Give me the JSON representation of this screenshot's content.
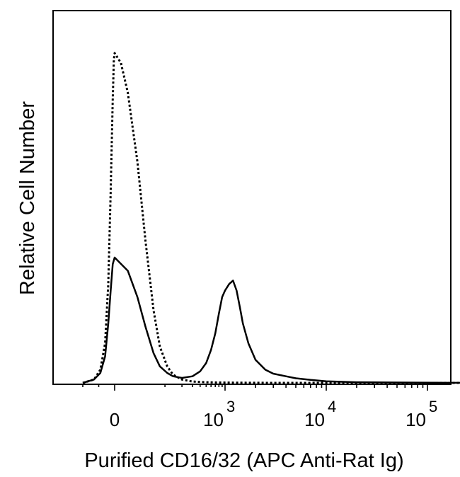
{
  "chart_data": {
    "type": "line",
    "title": "",
    "xlabel": "Purified CD16/32 (APC Anti-Rat Ig)",
    "ylabel": "Relative Cell Number",
    "x_scale": "biexponential",
    "x_tick_labels": [
      {
        "base": "0",
        "exp": "",
        "value": 0
      },
      {
        "base": "10",
        "exp": "3",
        "value": 1000
      },
      {
        "base": "10",
        "exp": "4",
        "value": 10000
      },
      {
        "base": "10",
        "exp": "5",
        "value": 100000
      }
    ],
    "xlim": [
      -200,
      262144
    ],
    "ylim": [
      0,
      100
    ],
    "grid": false,
    "legend": "none",
    "colors": {
      "line": "#000000",
      "axis": "#000000"
    },
    "series": [
      {
        "style": "dotted",
        "x": [
          -200,
          -130,
          -90,
          -60,
          -40,
          -25,
          -12,
          -5,
          0,
          5,
          12,
          25,
          40,
          60,
          80,
          110,
          140,
          200,
          300,
          500,
          800,
          1500,
          3000,
          10000,
          50000,
          262144
        ],
        "y": [
          0,
          1,
          4,
          12,
          30,
          58,
          86,
          98,
          100,
          97,
          88,
          67,
          43,
          22,
          11,
          5,
          2.5,
          1,
          0.4,
          0.2,
          0.1,
          0.05,
          0,
          0,
          0,
          0
        ]
      },
      {
        "style": "solid",
        "x": [
          -200,
          -130,
          -90,
          -60,
          -40,
          -25,
          -12,
          0,
          12,
          25,
          40,
          60,
          80,
          110,
          140,
          200,
          300,
          400,
          500,
          600,
          700,
          800,
          900,
          1000,
          1100,
          1200,
          1300,
          1400,
          1500,
          1700,
          2000,
          2500,
          3000,
          4000,
          5000,
          7000,
          10000,
          20000,
          50000,
          262144
        ],
        "y": [
          0,
          1,
          3,
          8,
          18,
          28,
          36,
          38,
          34,
          26,
          17,
          9,
          5,
          3,
          2,
          1.5,
          2,
          3.5,
          6,
          10,
          15,
          21,
          26,
          28,
          30,
          31,
          28,
          23,
          18,
          12,
          7,
          4,
          2.8,
          2,
          1.4,
          0.9,
          0.5,
          0.2,
          0.1,
          0
        ]
      }
    ]
  }
}
